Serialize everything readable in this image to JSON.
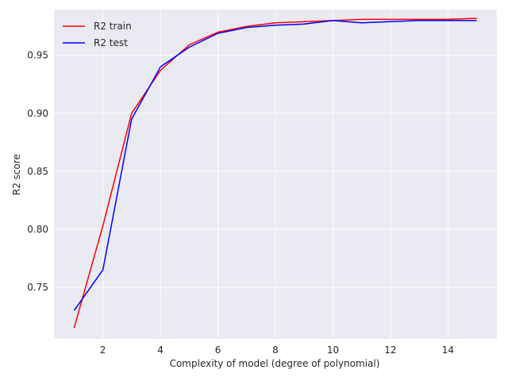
{
  "chart_data": {
    "type": "line",
    "xlabel": "Complexity of model (degree of polynomial)",
    "ylabel": "R2 score",
    "xlim": [
      0.3,
      15.7
    ],
    "ylim": [
      0.7055,
      0.9895
    ],
    "xticks": [
      2,
      4,
      6,
      8,
      10,
      12,
      14
    ],
    "yticks": [
      0.75,
      0.8,
      0.85,
      0.9,
      0.95
    ],
    "grid": true,
    "legend_position": "top-left",
    "x": [
      1,
      2,
      3,
      4,
      5,
      6,
      7,
      8,
      9,
      10,
      11,
      12,
      13,
      14,
      15
    ],
    "series": [
      {
        "name": "R2 train",
        "color": "#ff0000",
        "values": [
          0.715,
          0.803,
          0.9,
          0.937,
          0.959,
          0.97,
          0.975,
          0.978,
          0.979,
          0.98,
          0.981,
          0.981,
          0.981,
          0.981,
          0.982
        ]
      },
      {
        "name": "R2 test",
        "color": "#0000ff",
        "values": [
          0.73,
          0.765,
          0.895,
          0.94,
          0.957,
          0.969,
          0.974,
          0.976,
          0.977,
          0.98,
          0.978,
          0.979,
          0.98,
          0.98,
          0.98
        ]
      }
    ],
    "style": {
      "background": "#eaeaf2",
      "grid_color": "#ffffff"
    }
  }
}
